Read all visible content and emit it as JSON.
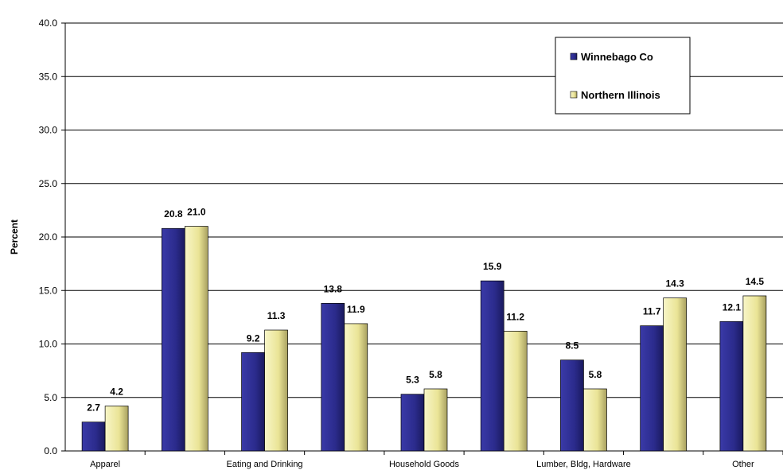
{
  "chart_data": {
    "type": "bar",
    "title": "",
    "xlabel": "",
    "ylabel": "Percent",
    "ylim": [
      0,
      40
    ],
    "yticks": [
      "0.0",
      "5.0",
      "10.0",
      "15.0",
      "20.0",
      "25.0",
      "30.0",
      "35.0",
      "40.0"
    ],
    "ytick_values": [
      0,
      5,
      10,
      15,
      20,
      25,
      30,
      35,
      40
    ],
    "grid": true,
    "legend_position": "top-right",
    "categories": [
      "Apparel",
      "",
      "Eating and Drinking",
      "",
      "Household Goods",
      "",
      "Lumber, Bldg, Hardware",
      "",
      "Other"
    ],
    "series": [
      {
        "name": "Winnebago Co",
        "color": "#2b2b8c",
        "values": [
          2.7,
          20.8,
          9.2,
          13.8,
          5.3,
          15.9,
          8.5,
          11.7,
          12.1
        ],
        "labels": [
          "2.7",
          "20.8",
          "9.2",
          "13.8",
          "5.3",
          "15.9",
          "8.5",
          "11.7",
          "12.1"
        ]
      },
      {
        "name": "Northern Illinois",
        "color": "#f0eca0",
        "values": [
          4.2,
          21.0,
          11.3,
          11.9,
          5.8,
          11.2,
          5.8,
          14.3,
          14.5
        ],
        "labels": [
          "4.2",
          "21.0",
          "11.3",
          "11.9",
          "5.8",
          "11.2",
          "5.8",
          "14.3",
          "14.5"
        ]
      }
    ]
  }
}
